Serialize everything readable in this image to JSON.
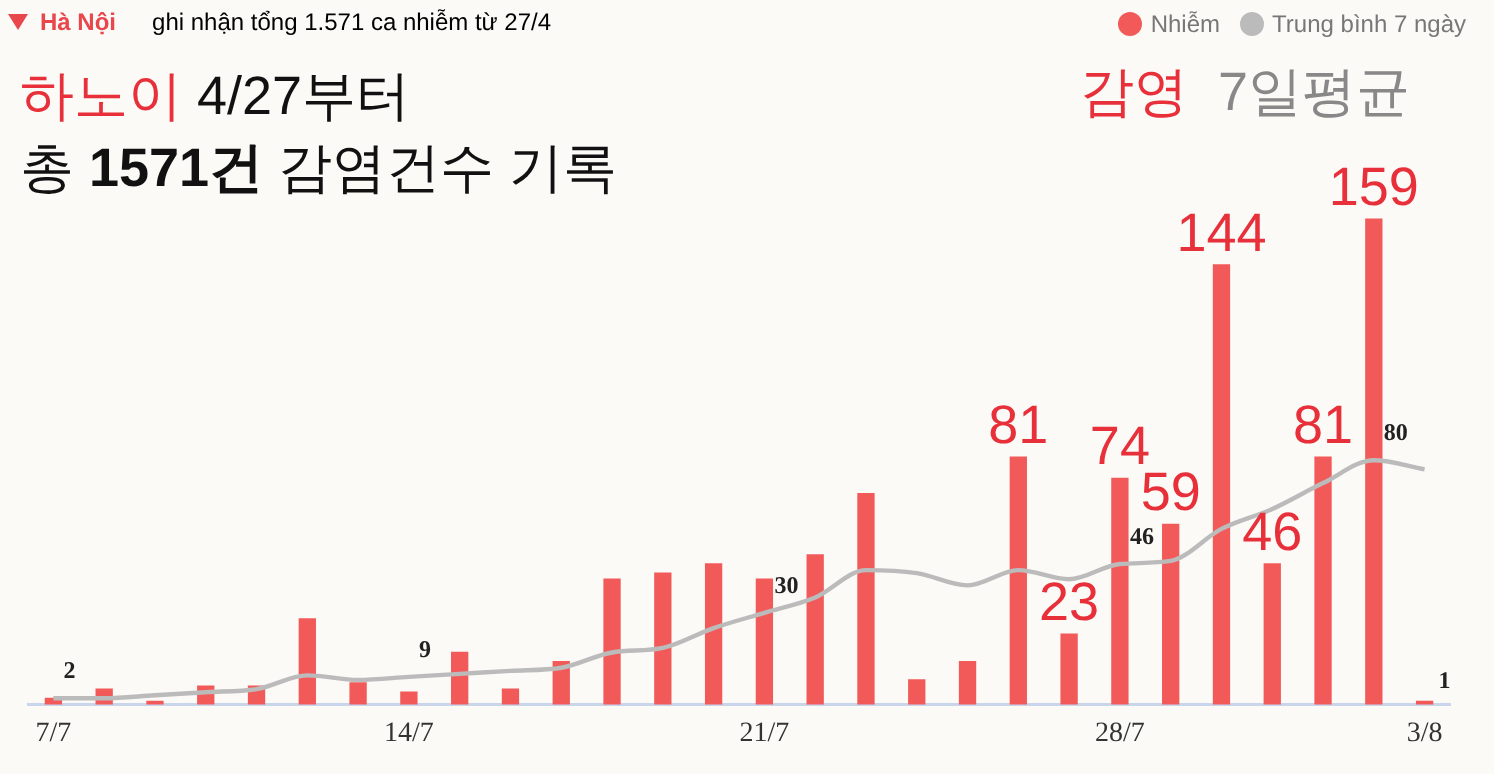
{
  "chart_data": {
    "type": "bar",
    "title": "Hà Nội",
    "subtitle": "ghi nhận tổng 1.571 ca nhiễm từ 27/4",
    "categories": [
      "7/7",
      null,
      null,
      null,
      null,
      null,
      null,
      "14/7",
      null,
      null,
      null,
      null,
      null,
      null,
      "21/7",
      null,
      null,
      null,
      null,
      null,
      null,
      "28/7",
      null,
      null,
      null,
      null,
      null,
      "3/8"
    ],
    "series": [
      {
        "name": "Nhiễm",
        "color": "#f25a5a",
        "values": [
          2,
          5,
          1,
          6,
          6,
          28,
          7,
          4,
          17,
          5,
          14,
          41,
          43,
          46,
          41,
          49,
          69,
          8,
          14,
          81,
          23,
          74,
          59,
          144,
          46,
          81,
          159,
          1
        ],
        "value_labels": [
          null,
          null,
          null,
          null,
          null,
          null,
          null,
          null,
          null,
          null,
          null,
          null,
          null,
          null,
          null,
          null,
          null,
          null,
          null,
          "81",
          "23",
          "74",
          "59",
          "144",
          "46",
          "81",
          "159",
          null
        ]
      },
      {
        "name": "Trung bình 7 ngày",
        "type": "line",
        "color": "#bbbbbb",
        "values": [
          2,
          2,
          3,
          4,
          5,
          9.5,
          8,
          9,
          10,
          11,
          12,
          17,
          18.5,
          25,
          30,
          35,
          44,
          43,
          39,
          44,
          41,
          46,
          47,
          57.5,
          64,
          72.5,
          80,
          77
        ],
        "value_labels": [
          "2",
          null,
          null,
          null,
          null,
          null,
          null,
          "9",
          null,
          null,
          null,
          null,
          null,
          null,
          "30",
          null,
          null,
          null,
          null,
          null,
          null,
          "46",
          null,
          null,
          null,
          null,
          "80",
          null
        ]
      }
    ],
    "annotations": [
      "하노이 4/27부터",
      "총 1571건 감염건수 기록",
      "감영",
      "7일평균",
      {
        "text": "1",
        "x": "3/8",
        "y": 1
      }
    ],
    "legend": "top right",
    "grid": false,
    "marker": "none"
  }
}
